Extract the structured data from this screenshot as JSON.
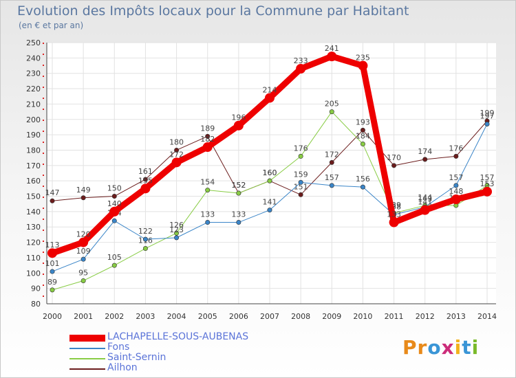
{
  "title": "Evolution des Impôts locaux pour la Commune par Habitant",
  "subtitle": "(en € et par an)",
  "logo": "Proxiti",
  "colors": {
    "red": "#ee0000",
    "blue": "#3a85c8",
    "green": "#88cc44",
    "brown": "#6b1c1c",
    "text": "#5a77a0"
  },
  "chart_data": {
    "type": "line",
    "xlabel": "",
    "ylabel": "",
    "x": [
      "2000",
      "2001",
      "2002",
      "2003",
      "2004",
      "2005",
      "2006",
      "2007",
      "2008",
      "2009",
      "2010",
      "2011",
      "2012",
      "2013",
      "2014"
    ],
    "ylim": [
      80,
      250
    ],
    "yticks": [
      80,
      90,
      100,
      110,
      120,
      130,
      140,
      150,
      160,
      170,
      180,
      190,
      200,
      210,
      220,
      230,
      240,
      250
    ],
    "grid": true,
    "legend_position": "bottom-left",
    "series": [
      {
        "name": "LACHAPELLE-SOUS-AUBENAS",
        "color": "#ee0000",
        "width": 9,
        "values": [
          113,
          120,
          140,
          155,
          172,
          182,
          196,
          214,
          233,
          241,
          235,
          133,
          141,
          148,
          153
        ]
      },
      {
        "name": "Fons",
        "color": "#3a85c8",
        "width": 1,
        "values": [
          101,
          109,
          134,
          122,
          123,
          133,
          133,
          141,
          159,
          157,
          156,
          138,
          143,
          157,
          197
        ]
      },
      {
        "name": "Saint-Sernin",
        "color": "#88cc44",
        "width": 1,
        "values": [
          89,
          95,
          105,
          116,
          126,
          154,
          152,
          160,
          176,
          205,
          184,
          139,
          144,
          144,
          157
        ]
      },
      {
        "name": "Ailhon",
        "color": "#6b1c1c",
        "width": 1,
        "values": [
          147,
          149,
          150,
          161,
          180,
          189,
          152,
          160,
          151,
          172,
          193,
          170,
          174,
          176,
          199
        ]
      }
    ]
  }
}
